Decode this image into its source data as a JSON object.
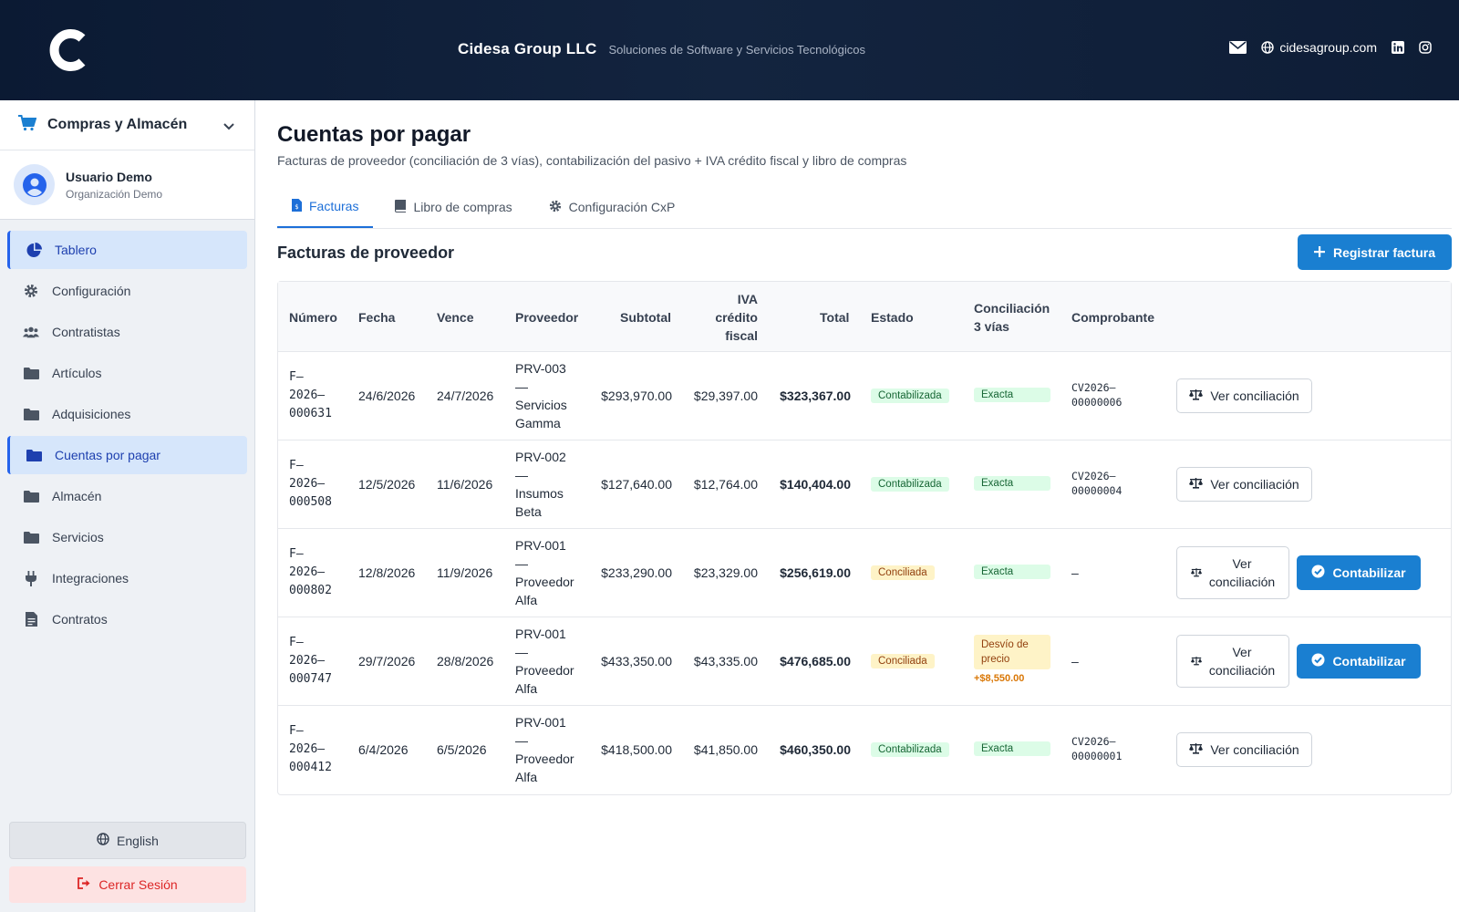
{
  "header": {
    "company": "Cidesa Group LLC",
    "tagline": "Soluciones de Software y Servicios Tecnológicos",
    "website": "cidesagroup.com"
  },
  "sidebar": {
    "module": "Compras y Almacén",
    "user_name": "Usuario Demo",
    "user_org": "Organización Demo",
    "items": [
      {
        "label": "Tablero",
        "icon": "pie-chart-icon"
      },
      {
        "label": "Configuración",
        "icon": "gear-icon"
      },
      {
        "label": "Contratistas",
        "icon": "users-icon"
      },
      {
        "label": "Artículos",
        "icon": "folder-icon"
      },
      {
        "label": "Adquisiciones",
        "icon": "folder-icon"
      },
      {
        "label": "Cuentas por pagar",
        "icon": "folder-icon"
      },
      {
        "label": "Almacén",
        "icon": "folder-icon"
      },
      {
        "label": "Servicios",
        "icon": "folder-icon"
      },
      {
        "label": "Integraciones",
        "icon": "plug-icon"
      },
      {
        "label": "Contratos",
        "icon": "document-icon"
      }
    ],
    "language_label": "English",
    "logout_label": "Cerrar Sesión"
  },
  "main": {
    "title": "Cuentas por pagar",
    "subtitle": "Facturas de proveedor (conciliación de 3 vías), contabilización del pasivo + IVA crédito fiscal y libro de compras",
    "tabs": [
      "Facturas",
      "Libro de compras",
      "Configuración CxP"
    ],
    "section_title": "Facturas de proveedor",
    "register_button": "Registrar factura"
  },
  "table": {
    "headers": {
      "numero": "Número",
      "fecha": "Fecha",
      "vence": "Vence",
      "proveedor": "Proveedor",
      "subtotal": "Subtotal",
      "iva_1": "IVA",
      "iva_2": "crédito",
      "iva_3": "fiscal",
      "total": "Total",
      "estado": "Estado",
      "conc_1": "Conciliación",
      "conc_2": "3 vías",
      "comprobante": "Comprobante"
    },
    "view_label": "Ver conciliación",
    "view_label_1": "Ver",
    "view_label_2": "conciliación",
    "post_label": "Contabilizar",
    "rows": [
      {
        "n1": "F–",
        "n2": "2026–",
        "n3": "000631",
        "fecha": "24/6/2026",
        "vence": "24/7/2026",
        "p1": "PRV-003",
        "p2": "—",
        "p3": "Servicios",
        "p4": "Gamma",
        "subtotal": "$293,970.00",
        "iva": "$29,397.00",
        "total": "$323,367.00",
        "estado": "Contabilizada",
        "conc": "Exacta",
        "comp1": "CV2026–",
        "comp2": "00000006"
      },
      {
        "n1": "F–",
        "n2": "2026–",
        "n3": "000508",
        "fecha": "12/5/2026",
        "vence": "11/6/2026",
        "p1": "PRV-002",
        "p2": "—",
        "p3": "Insumos",
        "p4": "Beta",
        "subtotal": "$127,640.00",
        "iva": "$12,764.00",
        "total": "$140,404.00",
        "estado": "Contabilizada",
        "conc": "Exacta",
        "comp1": "CV2026–",
        "comp2": "00000004"
      },
      {
        "n1": "F–",
        "n2": "2026–",
        "n3": "000802",
        "fecha": "12/8/2026",
        "vence": "11/9/2026",
        "p1": "PRV-001",
        "p2": "—",
        "p3": "Proveedor",
        "p4": "Alfa",
        "subtotal": "$233,290.00",
        "iva": "$23,329.00",
        "total": "$256,619.00",
        "estado": "Conciliada",
        "conc": "Exacta",
        "comp": "–"
      },
      {
        "n1": "F–",
        "n2": "2026–",
        "n3": "000747",
        "fecha": "29/7/2026",
        "vence": "28/8/2026",
        "p1": "PRV-001",
        "p2": "—",
        "p3": "Proveedor",
        "p4": "Alfa",
        "subtotal": "$433,350.00",
        "iva": "$43,335.00",
        "total": "$476,685.00",
        "estado": "Conciliada",
        "conc1": "Desvío de",
        "conc2": "precio",
        "delta": "+$8,550.00",
        "comp": "–"
      },
      {
        "n1": "F–",
        "n2": "2026–",
        "n3": "000412",
        "fecha": "6/4/2026",
        "vence": "6/5/2026",
        "p1": "PRV-001",
        "p2": "—",
        "p3": "Proveedor",
        "p4": "Alfa",
        "subtotal": "$418,500.00",
        "iva": "$41,850.00",
        "total": "$460,350.00",
        "estado": "Contabilizada",
        "conc": "Exacta",
        "comp1": "CV2026–",
        "comp2": "00000001"
      }
    ]
  },
  "colors": {
    "header_bg": "#0b1a33",
    "accent": "#1a7fd1",
    "active_nav_bg": "#d6e6fb",
    "badge_green": "#dcfce7",
    "badge_yellow": "#fef3c7"
  }
}
